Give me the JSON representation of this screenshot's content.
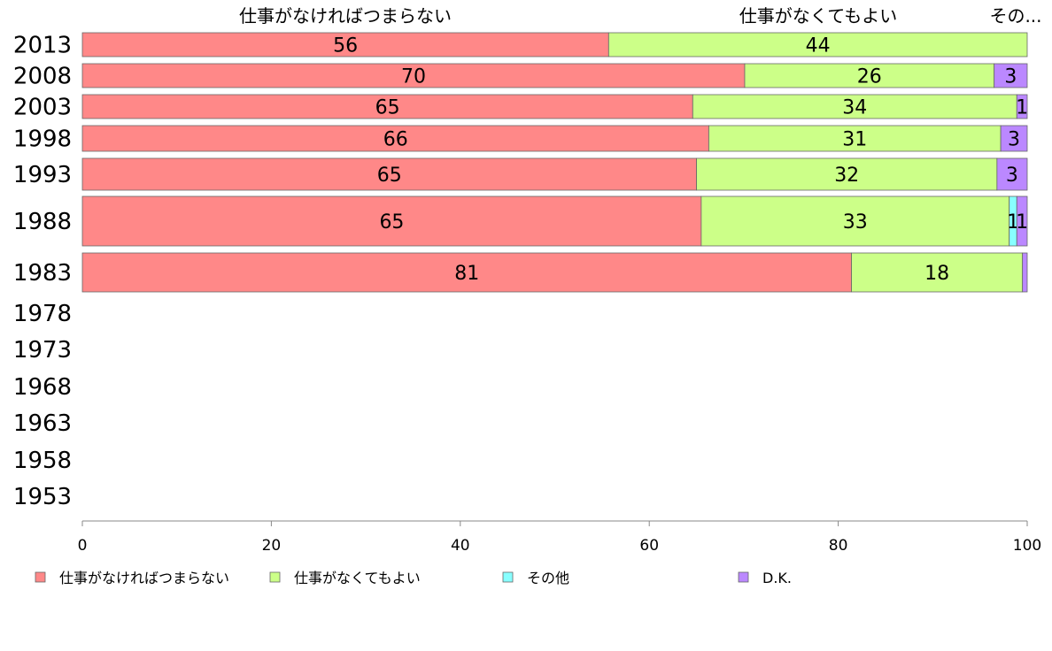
{
  "chart_data": {
    "type": "bar",
    "orientation": "horizontal",
    "stacked": true,
    "categories": [
      "2013",
      "2008",
      "2003",
      "1998",
      "1993",
      "1988",
      "1983",
      "1978",
      "1973",
      "1968",
      "1963",
      "1958",
      "1953"
    ],
    "series": [
      {
        "name": "仕事がなければつまらない",
        "color": "#ff8888",
        "values": [
          55.7,
          70.1,
          64.6,
          66.3,
          65.0,
          65.5,
          81.4,
          null,
          null,
          null,
          null,
          null,
          null
        ],
        "labels": [
          "56",
          "70",
          "65",
          "66",
          "65",
          "65",
          "81",
          "",
          "",
          "",
          "",
          "",
          ""
        ]
      },
      {
        "name": "仕事がなくてもよい",
        "color": "#ccff88",
        "values": [
          44.3,
          26.4,
          34.3,
          30.9,
          31.8,
          32.6,
          18.1,
          null,
          null,
          null,
          null,
          null,
          null
        ],
        "labels": [
          "44",
          "26",
          "34",
          "31",
          "32",
          "33",
          "18",
          "",
          "",
          "",
          "",
          "",
          ""
        ]
      },
      {
        "name": "その他",
        "color": "#88ffff",
        "values": [
          0,
          0,
          0,
          0,
          0,
          0.8,
          0,
          null,
          null,
          null,
          null,
          null,
          null
        ],
        "labels": [
          "",
          "",
          "",
          "",
          "",
          "1",
          "",
          "",
          "",
          "",
          "",
          "",
          ""
        ]
      },
      {
        "name": "D.K.",
        "color": "#bb88ff",
        "values": [
          0,
          3.5,
          1.1,
          2.8,
          3.2,
          1.1,
          0.5,
          null,
          null,
          null,
          null,
          null,
          null
        ],
        "labels": [
          "",
          "3",
          "1",
          "3",
          "3",
          "1",
          "",
          "",
          "",
          "",
          "",
          "",
          ""
        ]
      }
    ],
    "bar_weights": [
      1,
      1,
      1,
      1,
      1.3,
      2,
      1.6,
      0,
      0,
      0,
      0,
      0,
      0
    ],
    "top_labels": [
      "仕事がなければつまらない",
      "仕事がなくてもよい",
      "その..."
    ],
    "xlim": [
      0,
      100
    ],
    "xticks": [
      "0",
      "20",
      "40",
      "60",
      "80",
      "100"
    ],
    "xlabel": "",
    "ylabel": "",
    "title": "",
    "grid": false,
    "legend_position": "bottom"
  }
}
